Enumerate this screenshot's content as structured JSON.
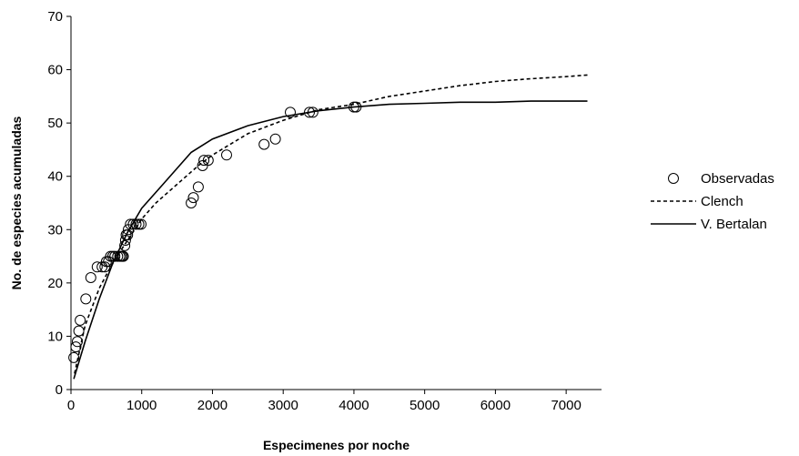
{
  "chart_data": {
    "type": "scatter",
    "xlabel": "Especimenes por noche",
    "ylabel": "No. de especies acumuladas",
    "xlim": [
      0,
      7500
    ],
    "ylim": [
      0,
      70
    ],
    "x_ticks": [
      0,
      1000,
      2000,
      3000,
      4000,
      5000,
      6000,
      7000
    ],
    "y_ticks": [
      0,
      10,
      20,
      30,
      40,
      50,
      60,
      70
    ],
    "grid": false,
    "legend_position": "right",
    "series": [
      {
        "name": "Observadas",
        "type": "scatter",
        "marker": "open-circle",
        "points": [
          [
            40,
            6
          ],
          [
            70,
            8
          ],
          [
            90,
            9
          ],
          [
            110,
            11
          ],
          [
            130,
            13
          ],
          [
            210,
            17
          ],
          [
            280,
            21
          ],
          [
            370,
            23
          ],
          [
            440,
            23
          ],
          [
            480,
            23
          ],
          [
            500,
            24
          ],
          [
            530,
            24
          ],
          [
            560,
            25
          ],
          [
            590,
            25
          ],
          [
            620,
            25
          ],
          [
            660,
            25
          ],
          [
            690,
            25
          ],
          [
            710,
            25
          ],
          [
            730,
            25
          ],
          [
            740,
            25
          ],
          [
            760,
            27
          ],
          [
            770,
            28
          ],
          [
            780,
            29
          ],
          [
            800,
            29
          ],
          [
            810,
            30
          ],
          [
            840,
            31
          ],
          [
            880,
            31
          ],
          [
            920,
            31
          ],
          [
            960,
            31
          ],
          [
            990,
            31
          ],
          [
            1700,
            35
          ],
          [
            1730,
            36
          ],
          [
            1800,
            38
          ],
          [
            1860,
            42
          ],
          [
            1880,
            43
          ],
          [
            1940,
            43
          ],
          [
            2200,
            44
          ],
          [
            2730,
            46
          ],
          [
            2890,
            47
          ],
          [
            3100,
            52
          ],
          [
            3370,
            52
          ],
          [
            3420,
            52
          ],
          [
            4000,
            53
          ],
          [
            4030,
            53
          ]
        ]
      },
      {
        "name": "Clench",
        "type": "line",
        "style": "dashed",
        "points": [
          [
            50,
            3
          ],
          [
            200,
            12
          ],
          [
            400,
            19
          ],
          [
            600,
            24
          ],
          [
            800,
            28
          ],
          [
            1000,
            32
          ],
          [
            1200,
            35
          ],
          [
            1500,
            38.5
          ],
          [
            1800,
            42
          ],
          [
            2000,
            44
          ],
          [
            2500,
            48
          ],
          [
            3000,
            50.5
          ],
          [
            3500,
            52.5
          ],
          [
            4000,
            53.5
          ],
          [
            4500,
            55
          ],
          [
            5000,
            56
          ],
          [
            5500,
            57
          ],
          [
            6000,
            57.8
          ],
          [
            6500,
            58.3
          ],
          [
            7000,
            58.7
          ],
          [
            7300,
            59
          ]
        ]
      },
      {
        "name": "V. Bertalan",
        "type": "line",
        "style": "solid",
        "points": [
          [
            40,
            2
          ],
          [
            200,
            9
          ],
          [
            400,
            17
          ],
          [
            600,
            24
          ],
          [
            800,
            29.5
          ],
          [
            1000,
            34
          ],
          [
            1300,
            38.5
          ],
          [
            1700,
            44.5
          ],
          [
            2000,
            47
          ],
          [
            2500,
            49.5
          ],
          [
            3000,
            51.2
          ],
          [
            3500,
            52.3
          ],
          [
            4000,
            53
          ],
          [
            4500,
            53.5
          ],
          [
            5000,
            53.7
          ],
          [
            5500,
            53.9
          ],
          [
            6000,
            53.9
          ],
          [
            6500,
            54.1
          ],
          [
            7000,
            54.1
          ],
          [
            7300,
            54.1
          ]
        ]
      }
    ]
  }
}
